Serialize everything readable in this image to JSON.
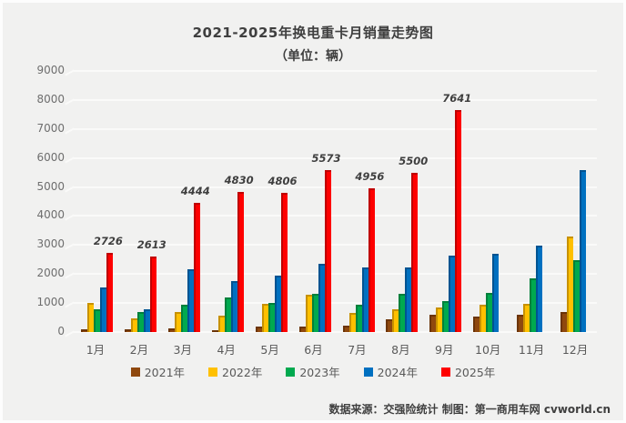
{
  "title": "2021-2025年换电重卡月销量走势图",
  "subtitle": "（单位：辆）",
  "source_note": "数据来源：交强险统计 制图：第一商用车网 cvworld.cn",
  "chart_data": {
    "type": "bar",
    "title": "2021-2025年换电重卡月销量走势图",
    "unit_label": "（单位：辆）",
    "categories": [
      "1月",
      "2月",
      "3月",
      "4月",
      "5月",
      "6月",
      "7月",
      "8月",
      "9月",
      "10月",
      "11月",
      "12月"
    ],
    "series": [
      {
        "name": "2021年",
        "color": "#8F480E",
        "edge": "#6B3408",
        "values": [
          100,
          80,
          120,
          70,
          200,
          180,
          230,
          430,
          590,
          540,
          600,
          690
        ]
      },
      {
        "name": "2022年",
        "color": "#FFC000",
        "edge": "#C79100",
        "values": [
          1000,
          460,
          690,
          550,
          980,
          1290,
          670,
          780,
          850,
          950,
          980,
          3300
        ]
      },
      {
        "name": "2023年",
        "color": "#00A94F",
        "edge": "#00803B",
        "values": [
          780,
          700,
          930,
          1200,
          990,
          1330,
          930,
          1310,
          1060,
          1360,
          1860,
          2480
        ]
      },
      {
        "name": "2024年",
        "color": "#0070C0",
        "edge": "#005391",
        "values": [
          1530,
          800,
          2150,
          1750,
          1960,
          2350,
          2220,
          2220,
          2630,
          2700,
          2990,
          5570
        ]
      },
      {
        "name": "2025年",
        "color": "#FE0000",
        "edge": "#C00000",
        "values": [
          2726,
          2613,
          4444,
          4830,
          4806,
          5573,
          4956,
          5500,
          7641,
          null,
          null,
          null
        ]
      }
    ],
    "data_label_series": "2025年",
    "data_labels": [
      "2726",
      "2613",
      "4444",
      "4830",
      "4806",
      "5573",
      "4956",
      "5500",
      "7641"
    ],
    "ylim": [
      0,
      9000
    ],
    "ytick_step": 1000,
    "yticks": [
      "0",
      "1000",
      "2000",
      "3000",
      "4000",
      "5000",
      "6000",
      "7000",
      "8000",
      "9000"
    ],
    "grid": true,
    "legend_position": "bottom",
    "background_color": "#F1F1F0",
    "gridline_color": "#FAFAF9",
    "label_color": "#3F3F3F"
  }
}
